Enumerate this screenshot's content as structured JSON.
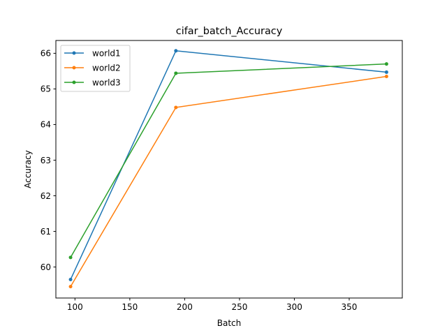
{
  "chart_data": {
    "type": "line",
    "title": "cifar_batch_Accuracy",
    "xlabel": "Batch",
    "ylabel": "Accuracy",
    "xlim": [
      82.6,
      398.4
    ],
    "ylim": [
      59.13,
      66.36
    ],
    "xticks": [
      100,
      150,
      200,
      250,
      300,
      350
    ],
    "yticks": [
      60,
      61,
      62,
      63,
      64,
      65,
      66
    ],
    "grid": false,
    "legend_position": "top-left",
    "x": [
      96,
      192,
      384
    ],
    "series": [
      {
        "name": "world1",
        "color": "#1f77b4",
        "values": [
          59.65,
          66.07,
          65.47
        ]
      },
      {
        "name": "world2",
        "color": "#ff7f0e",
        "values": [
          59.45,
          64.48,
          65.35
        ]
      },
      {
        "name": "world3",
        "color": "#2ca02c",
        "values": [
          60.27,
          65.44,
          65.7
        ]
      }
    ]
  }
}
